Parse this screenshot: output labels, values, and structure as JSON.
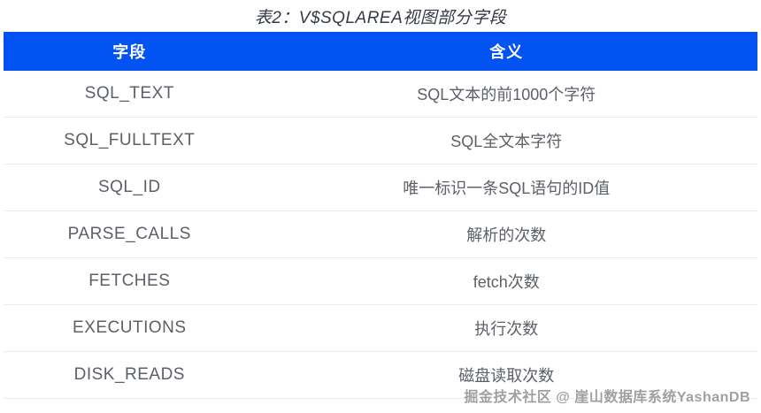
{
  "title": "表2：V$SQLAREA视图部分字段",
  "table": {
    "columns": [
      "字段",
      "含义"
    ],
    "rows": [
      [
        "SQL_TEXT",
        "SQL文本的前1000个字符"
      ],
      [
        "SQL_FULLTEXT",
        "SQL全文本字符"
      ],
      [
        "SQL_ID",
        "唯一标识一条SQL语句的ID值"
      ],
      [
        "PARSE_CALLS",
        "解析的次数"
      ],
      [
        "FETCHES",
        "fetch次数"
      ],
      [
        "EXECUTIONS",
        "执行次数"
      ],
      [
        "DISK_READS",
        "磁盘读取次数"
      ]
    ]
  },
  "watermark": "掘金技术社区 @ 崖山数据库系统YashanDB",
  "colors": {
    "header_bg": "#0253F2",
    "header_text": "#FFFFFF",
    "row_text": "#5C6067",
    "divider": "#EBEBEB",
    "title_text": "#343A46",
    "watermark_text": "#A0A0A0"
  }
}
